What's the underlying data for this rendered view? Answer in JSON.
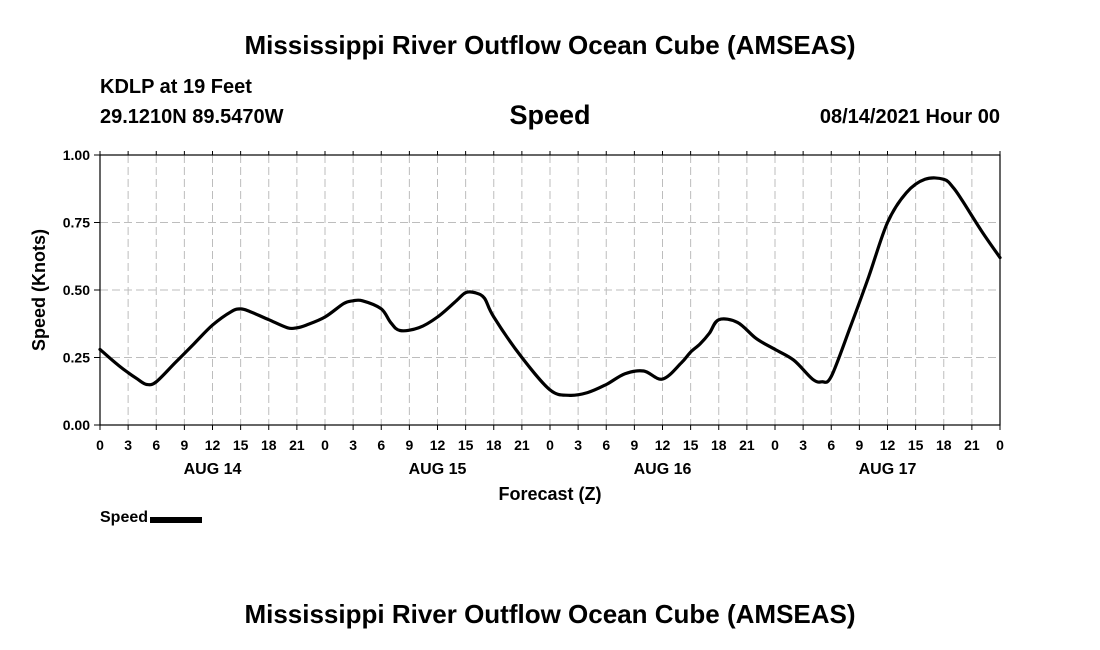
{
  "header": {
    "title": "Mississippi River Outflow Ocean Cube (AMSEAS)",
    "station": "KDLP at 19 Feet",
    "coords": "29.1210N  89.5470W",
    "variable": "Speed",
    "datetime": "08/14/2021 Hour 00"
  },
  "footer": {
    "title": "Mississippi River Outflow Ocean Cube (AMSEAS)"
  },
  "chart_data": {
    "type": "line",
    "title": "Speed",
    "xlabel": "Forecast (Z)",
    "ylabel": "Speed (Knots)",
    "ylim": [
      0,
      1
    ],
    "xlim": [
      0,
      96
    ],
    "yticks": [
      0,
      0.25,
      0.5,
      0.75,
      1
    ],
    "ytick_labels": [
      "0.00",
      "0.25",
      "0.50",
      "0.75",
      "1.00"
    ],
    "xtick_hours": [
      0,
      3,
      6,
      9,
      12,
      15,
      18,
      21,
      24,
      27,
      30,
      33,
      36,
      39,
      42,
      45,
      48,
      51,
      54,
      57,
      60,
      63,
      66,
      69,
      72,
      75,
      78,
      81,
      84,
      87,
      90,
      93,
      96
    ],
    "xtick_labels": [
      "0",
      "3",
      "6",
      "9",
      "12",
      "15",
      "18",
      "21",
      "0",
      "3",
      "6",
      "9",
      "12",
      "15",
      "18",
      "21",
      "0",
      "3",
      "6",
      "9",
      "12",
      "15",
      "18",
      "21",
      "0",
      "3",
      "6",
      "9",
      "12",
      "15",
      "18",
      "21",
      "0"
    ],
    "day_labels": [
      {
        "hour": 12,
        "label": "AUG 14"
      },
      {
        "hour": 36,
        "label": "AUG 15"
      },
      {
        "hour": 60,
        "label": "AUG 16"
      },
      {
        "hour": 84,
        "label": "AUG 17"
      }
    ],
    "grid": true,
    "legend": "bottom-left",
    "series": [
      {
        "name": "Speed",
        "x": [
          0,
          2,
          4,
          5,
          6,
          8,
          10,
          12,
          14,
          15,
          16,
          18,
          20,
          21,
          22,
          24,
          26,
          27,
          28,
          30,
          31,
          32,
          34,
          36,
          38,
          39,
          40,
          41,
          42,
          45,
          48,
          50,
          52,
          54,
          56,
          58,
          60,
          62,
          63,
          64,
          65,
          66,
          68,
          70,
          72,
          74,
          76,
          77,
          78,
          80,
          82,
          84,
          86,
          88,
          90,
          91,
          92,
          94,
          96
        ],
        "values": [
          0.28,
          0.22,
          0.17,
          0.15,
          0.16,
          0.23,
          0.3,
          0.37,
          0.42,
          0.43,
          0.42,
          0.39,
          0.36,
          0.36,
          0.37,
          0.4,
          0.45,
          0.46,
          0.46,
          0.43,
          0.38,
          0.35,
          0.36,
          0.4,
          0.46,
          0.49,
          0.49,
          0.47,
          0.4,
          0.25,
          0.13,
          0.11,
          0.12,
          0.15,
          0.19,
          0.2,
          0.17,
          0.23,
          0.27,
          0.3,
          0.34,
          0.39,
          0.38,
          0.32,
          0.28,
          0.24,
          0.17,
          0.16,
          0.18,
          0.36,
          0.55,
          0.75,
          0.86,
          0.91,
          0.91,
          0.88,
          0.83,
          0.72,
          0.62
        ]
      }
    ]
  }
}
